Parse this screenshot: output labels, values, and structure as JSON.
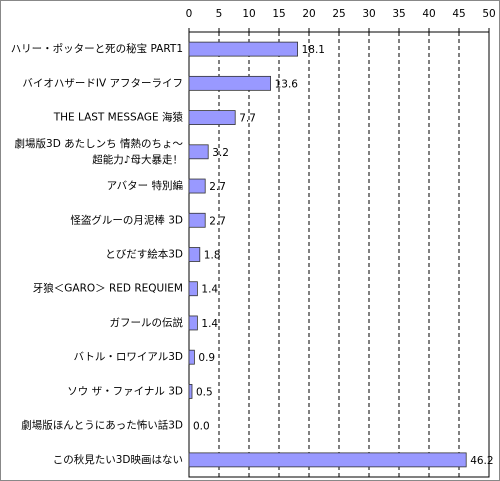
{
  "chart_data": {
    "type": "bar",
    "orientation": "horizontal",
    "categories": [
      "ハリー・ポッターと死の秘宝 PART1",
      "バイオハザードIV アフターライフ",
      "THE LAST MESSAGE 海猿",
      [
        "劇場版3D あたしンち 情熱のちょ～",
        "超能力♪母大暴走！"
      ],
      "アバター 特別編",
      "怪盗グルーの月泥棒 3D",
      "とびだす絵本3D",
      "牙狼＜GARO＞ RED REQUIEM",
      "ガフールの伝説",
      "バトル・ロワイアル3D",
      "ソウ ザ・ファイナル 3D",
      "劇場版ほんとうにあった怖い話3D",
      "この秋見たい3D映画はない"
    ],
    "values": [
      18.1,
      13.6,
      7.7,
      3.2,
      2.7,
      2.7,
      1.8,
      1.4,
      1.4,
      0.9,
      0.5,
      0.0,
      46.2
    ],
    "value_labels": [
      "18.1",
      "13.6",
      "7.7",
      "3.2",
      "2.7",
      "2.7",
      "1.8",
      "1.4",
      "1.4",
      "0.9",
      "0.5",
      "0.0",
      "46.2"
    ],
    "color": "#9999ff",
    "xlim": [
      0,
      50
    ],
    "xticks": [
      0,
      5,
      10,
      15,
      20,
      25,
      30,
      35,
      40,
      45,
      50
    ],
    "grid": true
  }
}
